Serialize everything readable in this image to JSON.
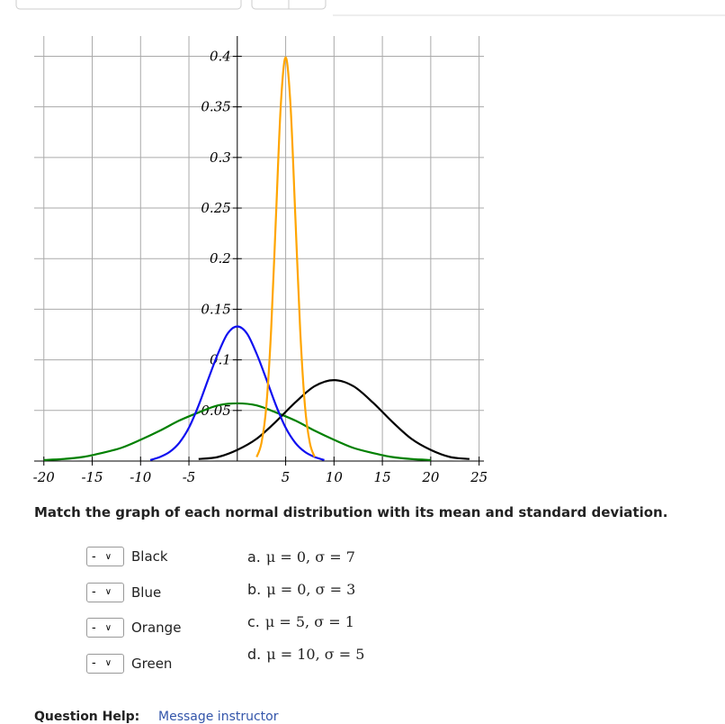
{
  "chart_data": {
    "type": "line",
    "xlim": [
      -21,
      25.5
    ],
    "ylim": [
      0,
      0.42
    ],
    "xticks": [
      -20,
      -15,
      -10,
      -5,
      5,
      10,
      15,
      20,
      25
    ],
    "yticks": [
      0.05,
      0.1,
      0.15,
      0.2,
      0.25,
      0.3,
      0.35,
      0.4
    ],
    "grid": true,
    "series": [
      {
        "color": "#008000",
        "x": [
          -20,
          -18,
          -16,
          -14,
          -12,
          -10,
          -8,
          -6,
          -4,
          -2,
          0,
          2,
          4,
          6,
          8,
          10,
          12,
          14,
          16,
          18,
          20
        ],
        "values": [
          0.001,
          0.002,
          0.004,
          0.008,
          0.013,
          0.021,
          0.03,
          0.04,
          0.048,
          0.055,
          0.057,
          0.055,
          0.048,
          0.04,
          0.03,
          0.021,
          0.013,
          0.008,
          0.004,
          0.002,
          0.001
        ]
      },
      {
        "color": "#000000",
        "x": [
          -4,
          -2,
          0,
          2,
          4,
          6,
          8,
          10,
          12,
          14,
          16,
          18,
          20,
          22,
          24
        ],
        "values": [
          0.002,
          0.004,
          0.011,
          0.022,
          0.039,
          0.058,
          0.074,
          0.08,
          0.074,
          0.058,
          0.039,
          0.022,
          0.011,
          0.004,
          0.002
        ]
      },
      {
        "color": "#1010f0",
        "x": [
          -9,
          -8,
          -7,
          -6,
          -5,
          -4,
          -3,
          -2,
          -1,
          0,
          1,
          2,
          3,
          4,
          5,
          6,
          7,
          8,
          9
        ],
        "values": [
          0.001,
          0.004,
          0.009,
          0.018,
          0.033,
          0.055,
          0.081,
          0.106,
          0.126,
          0.133,
          0.126,
          0.106,
          0.081,
          0.055,
          0.033,
          0.018,
          0.009,
          0.004,
          0.001
        ]
      },
      {
        "color": "#ffa500",
        "x": [
          2,
          2.5,
          3,
          3.5,
          4,
          4.5,
          5,
          5.5,
          6,
          6.5,
          7,
          7.5,
          8
        ],
        "values": [
          0.004,
          0.018,
          0.054,
          0.13,
          0.242,
          0.352,
          0.399,
          0.352,
          0.242,
          0.13,
          0.054,
          0.018,
          0.004
        ]
      }
    ]
  },
  "question": "Match the graph of each normal distribution with its mean and standard deviation.",
  "matches": [
    {
      "selected": "-",
      "label": "Black"
    },
    {
      "selected": "-",
      "label": "Blue"
    },
    {
      "selected": "-",
      "label": "Orange"
    },
    {
      "selected": "-",
      "label": "Green"
    }
  ],
  "options": [
    {
      "letter": "a.",
      "text": "μ = 0, σ = 7"
    },
    {
      "letter": "b.",
      "text": "μ = 0, σ = 3"
    },
    {
      "letter": "c.",
      "text": "μ = 5, σ = 1"
    },
    {
      "letter": "d.",
      "text": "μ = 10, σ = 5"
    }
  ],
  "footer": {
    "help": "Question Help:",
    "link": "Message instructor"
  }
}
